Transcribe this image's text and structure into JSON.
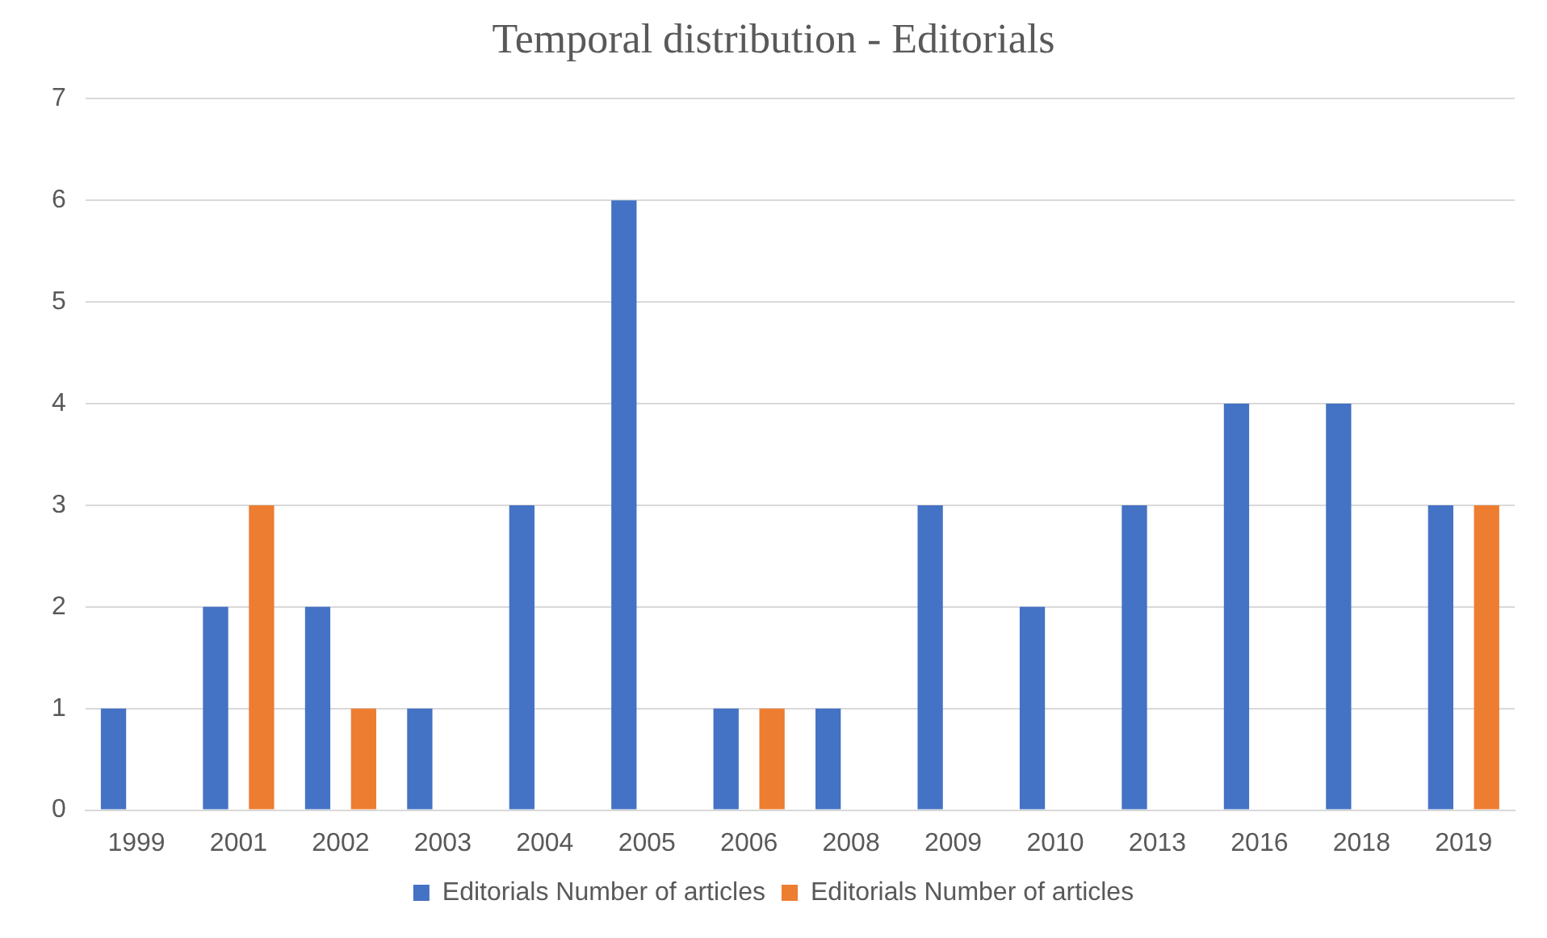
{
  "chart_data": {
    "type": "bar",
    "title": "Temporal distribution - Editorials",
    "categories": [
      "1999",
      "2001",
      "2002",
      "2003",
      "2004",
      "2005",
      "2006",
      "2008",
      "2009",
      "2010",
      "2013",
      "2016",
      "2018",
      "2019"
    ],
    "series": [
      {
        "name": "Editorials Number of articles",
        "color": "#4472c4",
        "values": [
          1,
          2,
          2,
          1,
          3,
          6,
          1,
          1,
          3,
          2,
          3,
          4,
          4,
          3
        ]
      },
      {
        "name": "Editorials Number of articles",
        "color": "#ed7d31",
        "values": [
          null,
          3,
          1,
          null,
          null,
          null,
          1,
          null,
          null,
          null,
          null,
          null,
          null,
          3
        ]
      }
    ],
    "ylim": [
      0,
      7
    ],
    "yticks": [
      0,
      1,
      2,
      3,
      4,
      5,
      6,
      7
    ],
    "grid": "y",
    "legend": "bottom"
  }
}
